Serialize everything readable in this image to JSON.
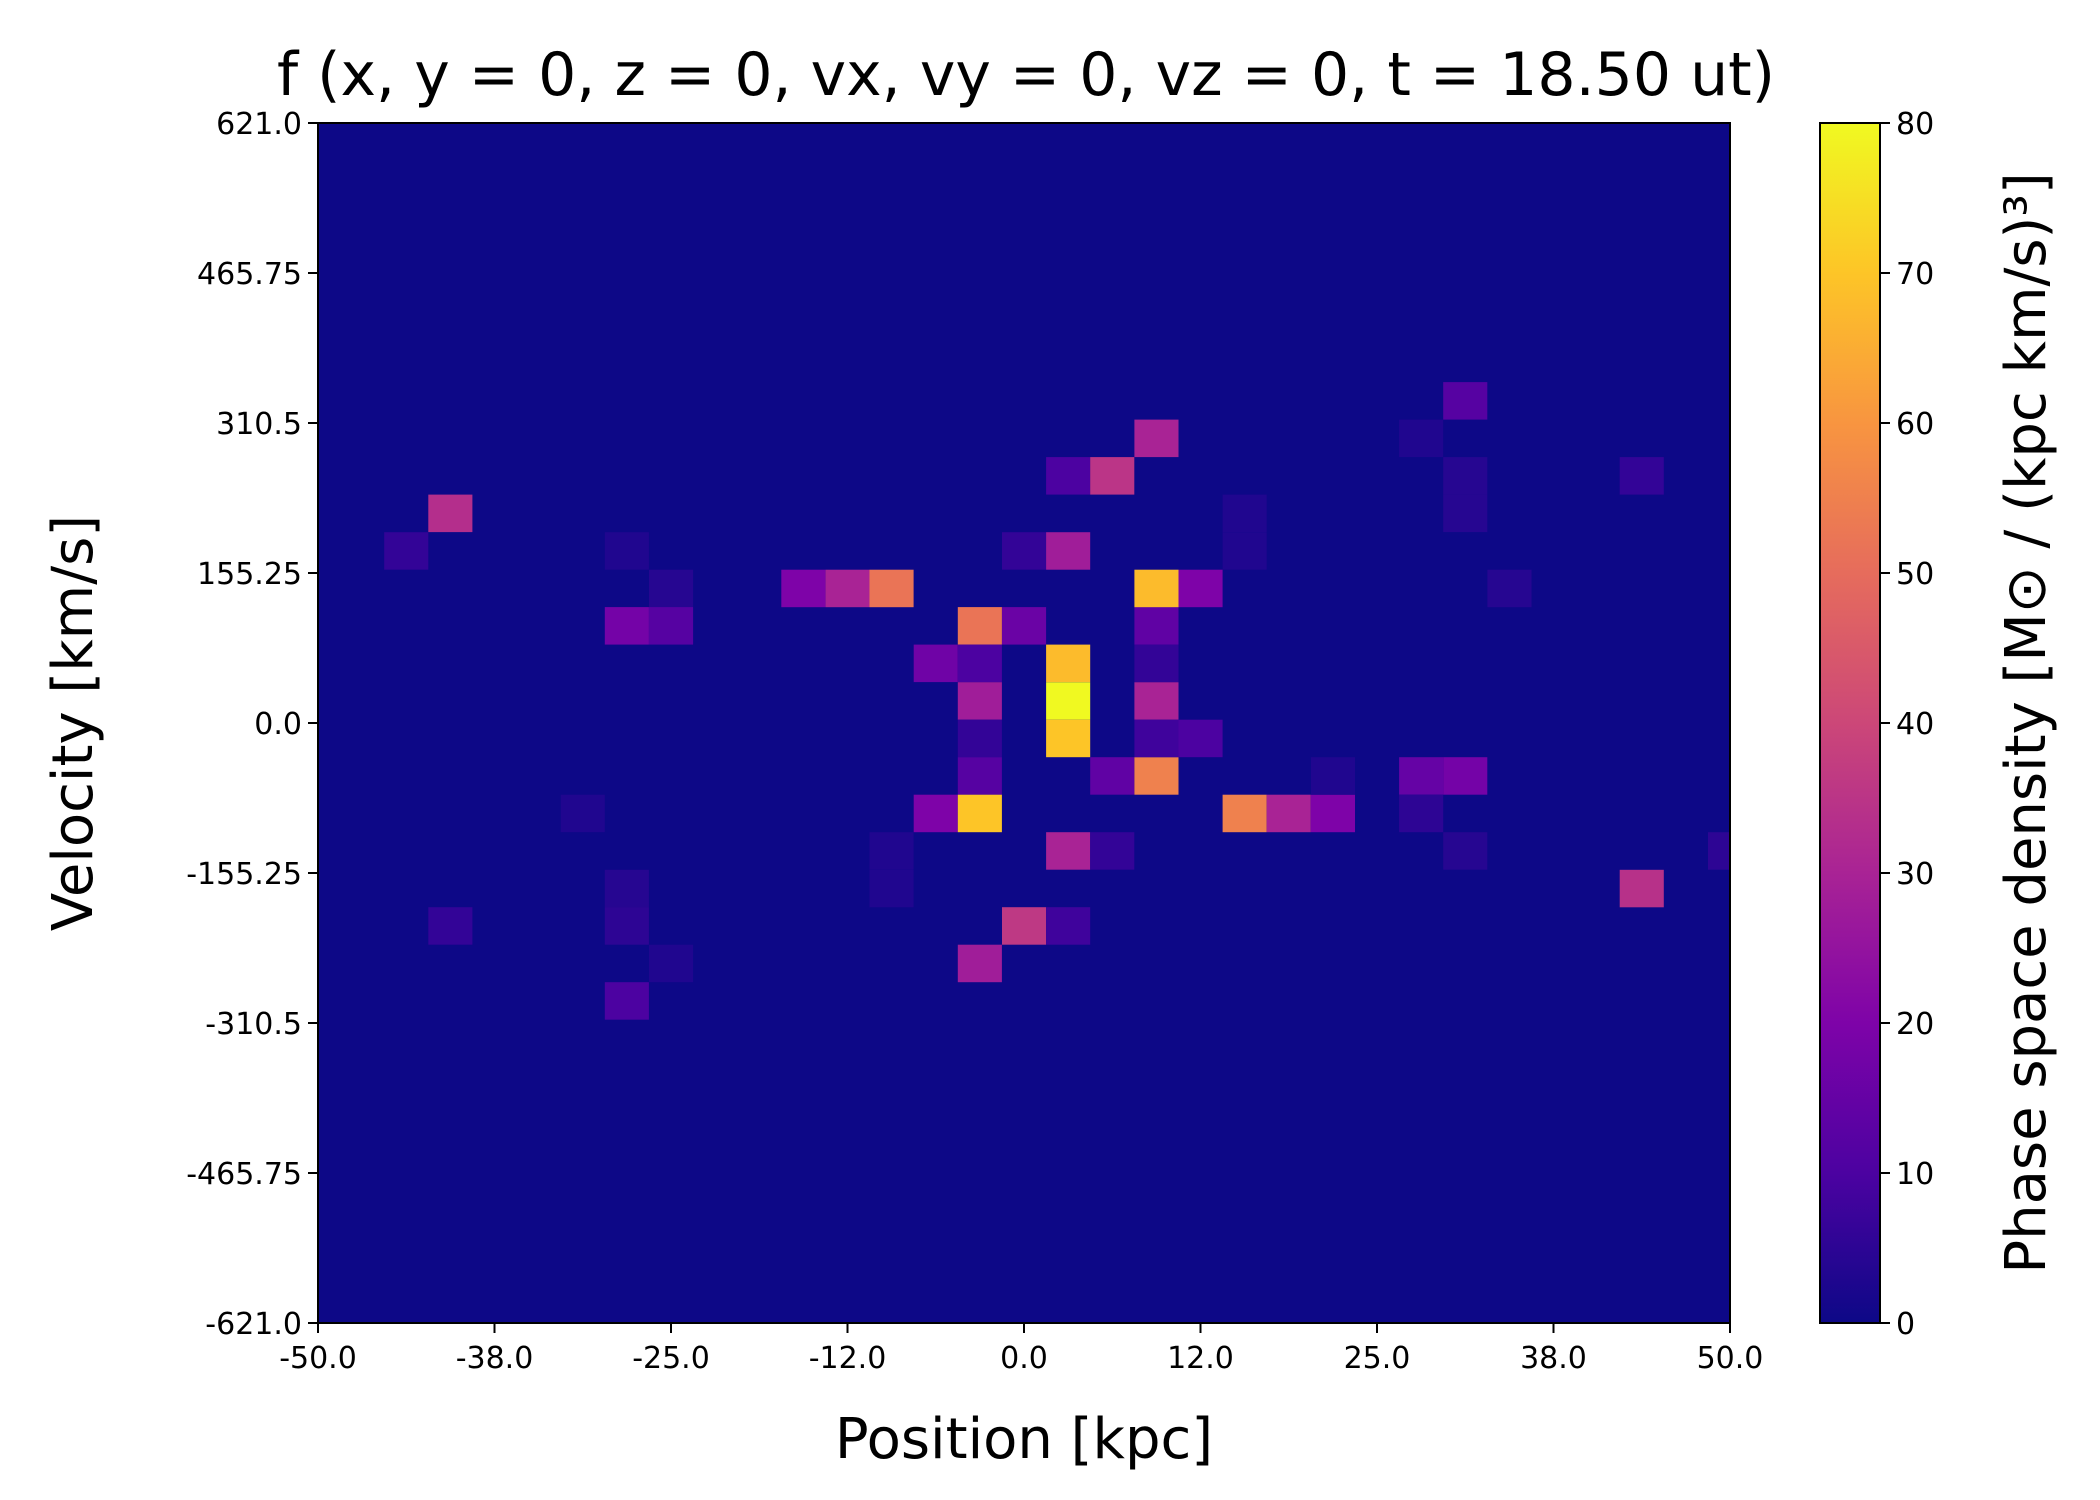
{
  "chart_data": {
    "type": "heatmap",
    "title": "f (x, y = 0, z = 0, vx, vy = 0, vz = 0, t = 18.50 ut)",
    "xlabel": "Position [kpc]",
    "ylabel": "Velocity [km/s]",
    "colorbar_label": "Phase space density [M⊙ / (kpc km/s)³]",
    "colormap": "plasma",
    "xlim": [
      -50,
      50
    ],
    "ylim": [
      -621,
      621
    ],
    "clim": [
      0,
      80
    ],
    "x_tick_labels": [
      "-50.0",
      "-38.0",
      "-25.0",
      "-12.0",
      "0.0",
      "12.0",
      "25.0",
      "38.0",
      "50.0"
    ],
    "y_tick_labels": [
      "621.0",
      "465.75",
      "310.5",
      "155.25",
      "0.0",
      "-155.25",
      "-310.5",
      "-465.75",
      "-621.0"
    ],
    "colorbar_ticks": [
      "80",
      "70",
      "60",
      "50",
      "40",
      "30",
      "20",
      "10",
      "0"
    ],
    "grid": false,
    "background_value": 0,
    "cells": [
      {
        "x": -43.75,
        "v": 178.1,
        "value": 6
      },
      {
        "x": -40.63,
        "v": 217.0,
        "value": 33
      },
      {
        "x": -28.13,
        "v": 178.1,
        "value": 3
      },
      {
        "x": -25.0,
        "v": 139.3,
        "value": 4
      },
      {
        "x": -28.13,
        "v": 100.5,
        "value": 18
      },
      {
        "x": -25.0,
        "v": 100.5,
        "value": 12
      },
      {
        "x": -15.63,
        "v": 139.3,
        "value": 20
      },
      {
        "x": -12.5,
        "v": 139.3,
        "value": 30
      },
      {
        "x": -9.38,
        "v": 139.3,
        "value": 52
      },
      {
        "x": -3.13,
        "v": 100.5,
        "value": 52
      },
      {
        "x": 0.0,
        "v": 100.5,
        "value": 16
      },
      {
        "x": -6.25,
        "v": 61.7,
        "value": 17
      },
      {
        "x": -3.13,
        "v": 61.7,
        "value": 10
      },
      {
        "x": 3.13,
        "v": 61.7,
        "value": 68
      },
      {
        "x": -3.13,
        "v": 22.8,
        "value": 28
      },
      {
        "x": 3.13,
        "v": 22.8,
        "value": 80
      },
      {
        "x": 3.13,
        "v": -16.0,
        "value": 70
      },
      {
        "x": -3.13,
        "v": -16.0,
        "value": 6
      },
      {
        "x": -3.13,
        "v": -54.8,
        "value": 12
      },
      {
        "x": 6.25,
        "v": -54.8,
        "value": 14
      },
      {
        "x": 9.38,
        "v": -54.8,
        "value": 55
      },
      {
        "x": 9.38,
        "v": 22.8,
        "value": 30
      },
      {
        "x": 9.38,
        "v": -16.0,
        "value": 8
      },
      {
        "x": 12.5,
        "v": -16.0,
        "value": 10
      },
      {
        "x": 9.38,
        "v": 61.7,
        "value": 6
      },
      {
        "x": 9.38,
        "v": 100.5,
        "value": 14
      },
      {
        "x": 9.38,
        "v": 139.3,
        "value": 68
      },
      {
        "x": 12.5,
        "v": 139.3,
        "value": 20
      },
      {
        "x": 0.0,
        "v": 178.1,
        "value": 6
      },
      {
        "x": 3.13,
        "v": 178.1,
        "value": 28
      },
      {
        "x": 3.13,
        "v": 255.8,
        "value": 10
      },
      {
        "x": 6.25,
        "v": 255.8,
        "value": 35
      },
      {
        "x": 9.38,
        "v": 294.6,
        "value": 30
      },
      {
        "x": 15.63,
        "v": 217.0,
        "value": 3
      },
      {
        "x": 15.63,
        "v": 178.1,
        "value": 3
      },
      {
        "x": -6.25,
        "v": -93.6,
        "value": 20
      },
      {
        "x": -3.13,
        "v": -93.6,
        "value": 70
      },
      {
        "x": 15.63,
        "v": -93.6,
        "value": 55
      },
      {
        "x": 18.75,
        "v": -93.6,
        "value": 30
      },
      {
        "x": 21.88,
        "v": -93.6,
        "value": 20
      },
      {
        "x": 28.13,
        "v": -54.8,
        "value": 15
      },
      {
        "x": 31.25,
        "v": -54.8,
        "value": 18
      },
      {
        "x": 28.13,
        "v": -93.6,
        "value": 5
      },
      {
        "x": 21.88,
        "v": -54.8,
        "value": 3
      },
      {
        "x": 31.25,
        "v": -132.4,
        "value": 4
      },
      {
        "x": 3.13,
        "v": -132.4,
        "value": 30
      },
      {
        "x": 6.25,
        "v": -132.4,
        "value": 6
      },
      {
        "x": -9.38,
        "v": -132.4,
        "value": 3
      },
      {
        "x": -9.38,
        "v": -171.3,
        "value": 3
      },
      {
        "x": -31.25,
        "v": -93.6,
        "value": 3
      },
      {
        "x": -28.13,
        "v": -171.3,
        "value": 4
      },
      {
        "x": -28.13,
        "v": -210.1,
        "value": 5
      },
      {
        "x": -40.63,
        "v": -210.1,
        "value": 6
      },
      {
        "x": 0.0,
        "v": -210.1,
        "value": 36
      },
      {
        "x": 3.13,
        "v": -210.1,
        "value": 8
      },
      {
        "x": -25.0,
        "v": -248.9,
        "value": 3
      },
      {
        "x": -3.13,
        "v": -248.9,
        "value": 28
      },
      {
        "x": -28.13,
        "v": -287.7,
        "value": 10
      },
      {
        "x": 31.25,
        "v": 333.4,
        "value": 12
      },
      {
        "x": 28.13,
        "v": 294.6,
        "value": 3
      },
      {
        "x": 31.25,
        "v": 255.8,
        "value": 4
      },
      {
        "x": 31.25,
        "v": 217.0,
        "value": 4
      },
      {
        "x": 34.38,
        "v": 139.3,
        "value": 4
      },
      {
        "x": 43.75,
        "v": 255.8,
        "value": 6
      },
      {
        "x": 43.75,
        "v": -171.3,
        "value": 34
      },
      {
        "x": 50.0,
        "v": -132.4,
        "value": 5
      }
    ]
  }
}
